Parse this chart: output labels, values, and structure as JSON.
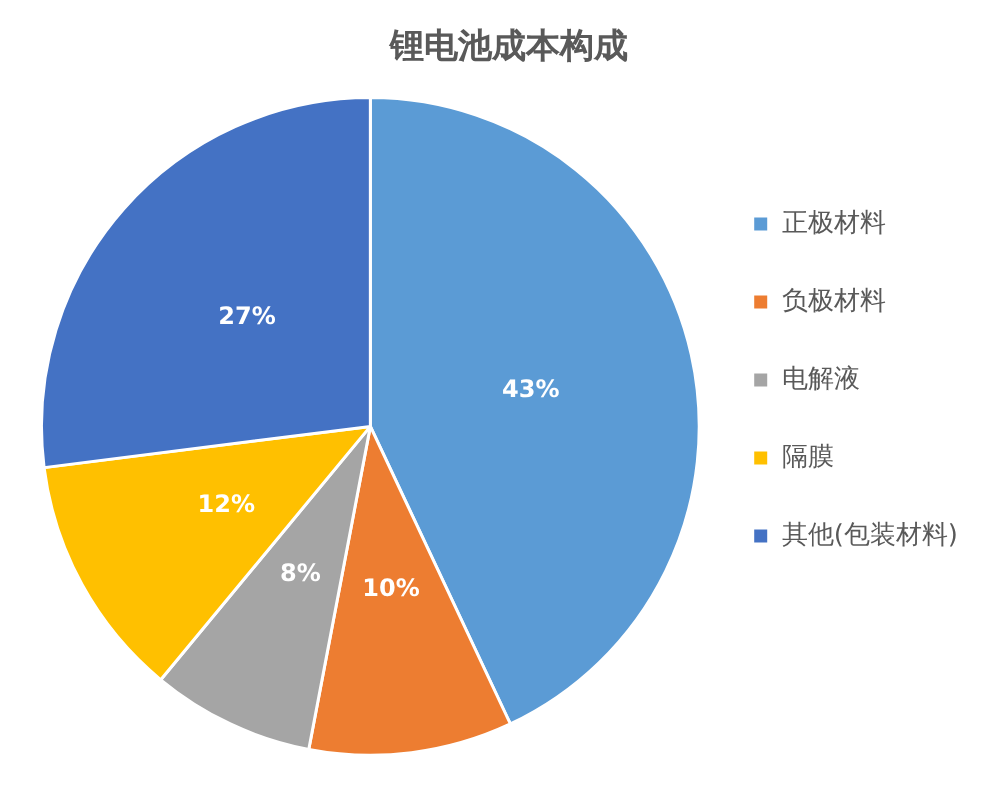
{
  "chart_data": {
    "type": "pie",
    "title": "锂电池成本构成",
    "categories": [
      "正极材料",
      "负极材料",
      "电解液",
      "隔膜",
      "其他(包装材料)"
    ],
    "values": [
      43,
      10,
      8,
      12,
      27
    ],
    "colors": [
      "#5b9bd5",
      "#ed7d31",
      "#a5a5a5",
      "#ffc000",
      "#4472c4"
    ],
    "value_labels": [
      "43%",
      "10%",
      "8%",
      "12%",
      "27%"
    ],
    "legend": "right"
  }
}
